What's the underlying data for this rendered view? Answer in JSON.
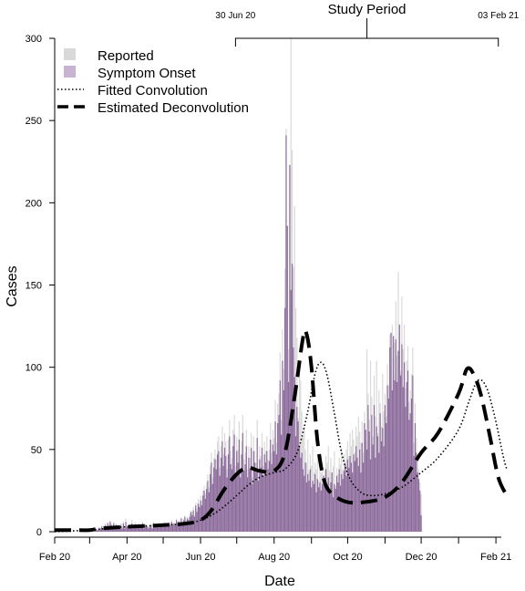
{
  "chart_data": {
    "type": "bar",
    "title": "",
    "xlabel": "Date",
    "ylabel": "Cases",
    "ylim": [
      0,
      300
    ],
    "yticks": [
      0,
      50,
      100,
      150,
      200,
      250,
      300
    ],
    "xlim": [
      "2020-02-01",
      "2021-02-10"
    ],
    "xticks": [
      {
        "date": "2020-02-01",
        "label": "Feb 20"
      },
      {
        "date": "2020-04-01",
        "label": "Apr 20"
      },
      {
        "date": "2020-06-01",
        "label": "Jun 20"
      },
      {
        "date": "2020-08-01",
        "label": "Aug 20"
      },
      {
        "date": "2020-10-01",
        "label": "Oct 20"
      },
      {
        "date": "2020-12-01",
        "label": "Dec 20"
      },
      {
        "date": "2021-02-01",
        "label": "Feb 21"
      }
    ],
    "minor_ticks": [
      "2020-03-01",
      "2020-05-01",
      "2020-07-01",
      "2020-09-01",
      "2020-11-01",
      "2021-01-01"
    ],
    "annotation": {
      "label": "Study Period",
      "start": {
        "date": "2020-06-30",
        "label": "30 Jun 20"
      },
      "end": {
        "date": "2021-02-03",
        "label": "03 Feb 21"
      }
    },
    "legend_position": "top-left",
    "legend": [
      {
        "label": "Reported",
        "kind": "box",
        "color": "#d9d9d9"
      },
      {
        "label": "Symptom Onset",
        "kind": "box",
        "color": "#c8b4d0"
      },
      {
        "label": "Fitted Convolution",
        "kind": "dotted"
      },
      {
        "label": "Estimated Deconvolution",
        "kind": "dashed"
      }
    ],
    "colors": {
      "reported": "#d9d9d9",
      "onset": "#8c6a9c",
      "lines": "#000000"
    },
    "series": [
      {
        "name": "Reported",
        "type": "bar",
        "start_date": "2020-02-01",
        "values": [
          0,
          0,
          0,
          0,
          0,
          0,
          0,
          0,
          0,
          0,
          0,
          0,
          0,
          0,
          0,
          0,
          0,
          0,
          0,
          0,
          0,
          0,
          0,
          0,
          0,
          0,
          0,
          0,
          0,
          0,
          0,
          0,
          0,
          0,
          1,
          2,
          1,
          3,
          2,
          4,
          3,
          2,
          5,
          3,
          6,
          4,
          7,
          5,
          3,
          6,
          4,
          5,
          3,
          2,
          4,
          5,
          3,
          6,
          2,
          8,
          3,
          4,
          4,
          2,
          7,
          3,
          5,
          6,
          3,
          4,
          5,
          4,
          3,
          6,
          2,
          5,
          4,
          3,
          3,
          4,
          5,
          2,
          6,
          3,
          4,
          4,
          3,
          5,
          4,
          4,
          3,
          6,
          4,
          5,
          4,
          6,
          5,
          7,
          5,
          6,
          4,
          8,
          6,
          7,
          5,
          9,
          6,
          8,
          10,
          7,
          9,
          8,
          11,
          13,
          12,
          15,
          10,
          18,
          14,
          20,
          17,
          22,
          19,
          25,
          28,
          23,
          30,
          35,
          27,
          40,
          48,
          33,
          45,
          50,
          44,
          55,
          58,
          39,
          52,
          64,
          47,
          60,
          55,
          38,
          56,
          68,
          49,
          45,
          62,
          71,
          40,
          58,
          50,
          67,
          38,
          55,
          71,
          44,
          48,
          62,
          38,
          52,
          45,
          60,
          33,
          58,
          49,
          42,
          68,
          36,
          52,
          46,
          60,
          40,
          55,
          49,
          58,
          44,
          50,
          66,
          48,
          62,
          57,
          80,
          54,
          78,
          84,
          109,
          68,
          123,
          99,
          160,
          245,
          159,
          111,
          150,
          300,
          232,
          161,
          198,
          136,
          118,
          69,
          104,
          92,
          73,
          58,
          64,
          50,
          42,
          56,
          37,
          47,
          40,
          52,
          36,
          42,
          38,
          47,
          31,
          44,
          36,
          41,
          33,
          38,
          46,
          42,
          52,
          37,
          45,
          30,
          40,
          49,
          28,
          39,
          35,
          45,
          41,
          51,
          38,
          47,
          43,
          50,
          55,
          46,
          60,
          52,
          62,
          56,
          48,
          64,
          58,
          70,
          61,
          54,
          67,
          48,
          73,
          56,
          111,
          84,
          68,
          104,
          82,
          58,
          95,
          70,
          104,
          60,
          86,
          78,
          64,
          96,
          73,
          84,
          70,
          102,
          89,
          120,
          108,
          126,
          94,
          115,
          140,
          107,
          158,
          121,
          98,
          143,
          111,
          126,
          87,
          104,
          113,
          79,
          86,
          96,
          112,
          54,
          78,
          57,
          43,
          38,
          30,
          23
        ]
      },
      {
        "name": "Symptom Onset",
        "type": "bar",
        "start_date": "2020-02-01",
        "values": [
          0,
          0,
          0,
          0,
          0,
          0,
          0,
          0,
          0,
          0,
          0,
          0,
          0,
          0,
          0,
          0,
          0,
          0,
          0,
          0,
          0,
          0,
          0,
          0,
          0,
          0,
          0,
          0,
          0,
          0,
          0,
          0,
          0,
          0,
          1,
          1,
          1,
          2,
          2,
          3,
          2,
          1,
          4,
          2,
          5,
          3,
          6,
          4,
          2,
          5,
          3,
          4,
          3,
          2,
          3,
          4,
          2,
          5,
          2,
          6,
          3,
          4,
          3,
          2,
          5,
          3,
          4,
          4,
          3,
          3,
          4,
          3,
          3,
          5,
          2,
          4,
          3,
          3,
          2,
          3,
          4,
          2,
          5,
          3,
          3,
          4,
          3,
          4,
          3,
          3,
          3,
          5,
          3,
          4,
          3,
          5,
          4,
          6,
          4,
          5,
          4,
          7,
          5,
          6,
          5,
          8,
          5,
          7,
          9,
          6,
          8,
          7,
          9,
          12,
          10,
          13,
          9,
          16,
          12,
          17,
          15,
          19,
          16,
          22,
          25,
          20,
          26,
          31,
          24,
          35,
          42,
          29,
          39,
          44,
          38,
          47,
          49,
          34,
          45,
          55,
          40,
          51,
          46,
          33,
          47,
          58,
          41,
          38,
          52,
          59,
          34,
          49,
          42,
          56,
          33,
          47,
          60,
          37,
          41,
          52,
          33,
          45,
          38,
          51,
          29,
          49,
          42,
          36,
          57,
          31,
          44,
          39,
          51,
          34,
          47,
          42,
          49,
          38,
          43,
          56,
          41,
          53,
          49,
          67,
          47,
          66,
          71,
          92,
          59,
          104,
          86,
          136,
          241,
          186,
          91,
          223,
          147,
          163,
          112,
          94,
          58,
          76,
          67,
          52,
          45,
          48,
          38,
          34,
          42,
          30,
          35,
          31,
          38,
          27,
          31,
          29,
          35,
          24,
          32,
          27,
          30,
          25,
          29,
          34,
          31,
          38,
          28,
          33,
          23,
          30,
          36,
          21,
          29,
          26,
          34,
          30,
          38,
          28,
          35,
          32,
          37,
          41,
          34,
          44,
          39,
          46,
          42,
          36,
          47,
          43,
          52,
          45,
          40,
          50,
          36,
          54,
          42,
          66,
          62,
          50,
          77,
          61,
          44,
          71,
          53,
          77,
          45,
          64,
          58,
          48,
          72,
          55,
          63,
          52,
          77,
          66,
          89,
          81,
          112,
          121,
          86,
          119,
          92,
          117,
          91,
          110,
          126,
          95,
          114,
          88,
          103,
          76,
          91,
          98,
          68,
          72,
          81,
          95,
          46,
          66,
          48,
          36,
          32,
          25,
          10
        ]
      },
      {
        "name": "Fitted Convolution",
        "type": "line",
        "points": [
          [
            "2020-02-01",
            0
          ],
          [
            "2020-03-01",
            1
          ],
          [
            "2020-03-15",
            2
          ],
          [
            "2020-04-01",
            3
          ],
          [
            "2020-05-01",
            4
          ],
          [
            "2020-05-20",
            5
          ],
          [
            "2020-06-01",
            7
          ],
          [
            "2020-06-10",
            10
          ],
          [
            "2020-06-20",
            15
          ],
          [
            "2020-07-01",
            22
          ],
          [
            "2020-07-10",
            28
          ],
          [
            "2020-07-20",
            33
          ],
          [
            "2020-08-01",
            36
          ],
          [
            "2020-08-10",
            38
          ],
          [
            "2020-08-20",
            48
          ],
          [
            "2020-08-28",
            70
          ],
          [
            "2020-09-04",
            96
          ],
          [
            "2020-09-09",
            103
          ],
          [
            "2020-09-14",
            95
          ],
          [
            "2020-09-20",
            72
          ],
          [
            "2020-09-26",
            48
          ],
          [
            "2020-10-03",
            32
          ],
          [
            "2020-10-12",
            24
          ],
          [
            "2020-10-20",
            22
          ],
          [
            "2020-11-01",
            23
          ],
          [
            "2020-11-15",
            27
          ],
          [
            "2020-12-01",
            36
          ],
          [
            "2020-12-15",
            45
          ],
          [
            "2021-01-01",
            62
          ],
          [
            "2021-01-10",
            80
          ],
          [
            "2021-01-17",
            92
          ],
          [
            "2021-01-24",
            88
          ],
          [
            "2021-01-31",
            70
          ],
          [
            "2021-02-07",
            46
          ],
          [
            "2021-02-10",
            38
          ]
        ]
      },
      {
        "name": "Estimated Deconvolution",
        "type": "line",
        "points": [
          [
            "2020-02-01",
            1
          ],
          [
            "2020-02-15",
            1
          ],
          [
            "2020-03-01",
            1
          ],
          [
            "2020-03-10",
            2
          ],
          [
            "2020-04-01",
            3
          ],
          [
            "2020-05-01",
            4
          ],
          [
            "2020-05-20",
            5
          ],
          [
            "2020-06-01",
            7
          ],
          [
            "2020-06-10",
            13
          ],
          [
            "2020-06-20",
            25
          ],
          [
            "2020-07-01",
            35
          ],
          [
            "2020-07-10",
            39
          ],
          [
            "2020-07-20",
            37
          ],
          [
            "2020-08-01",
            37
          ],
          [
            "2020-08-10",
            48
          ],
          [
            "2020-08-18",
            82
          ],
          [
            "2020-08-25",
            118
          ],
          [
            "2020-08-28",
            120
          ],
          [
            "2020-09-01",
            100
          ],
          [
            "2020-09-06",
            55
          ],
          [
            "2020-09-12",
            30
          ],
          [
            "2020-09-20",
            22
          ],
          [
            "2020-10-01",
            18
          ],
          [
            "2020-10-15",
            18
          ],
          [
            "2020-11-01",
            21
          ],
          [
            "2020-11-15",
            30
          ],
          [
            "2020-12-01",
            48
          ],
          [
            "2020-12-15",
            60
          ],
          [
            "2021-01-01",
            84
          ],
          [
            "2021-01-08",
            99
          ],
          [
            "2021-01-14",
            95
          ],
          [
            "2021-01-20",
            82
          ],
          [
            "2021-01-27",
            58
          ],
          [
            "2021-02-03",
            33
          ],
          [
            "2021-02-10",
            22
          ]
        ]
      }
    ]
  }
}
